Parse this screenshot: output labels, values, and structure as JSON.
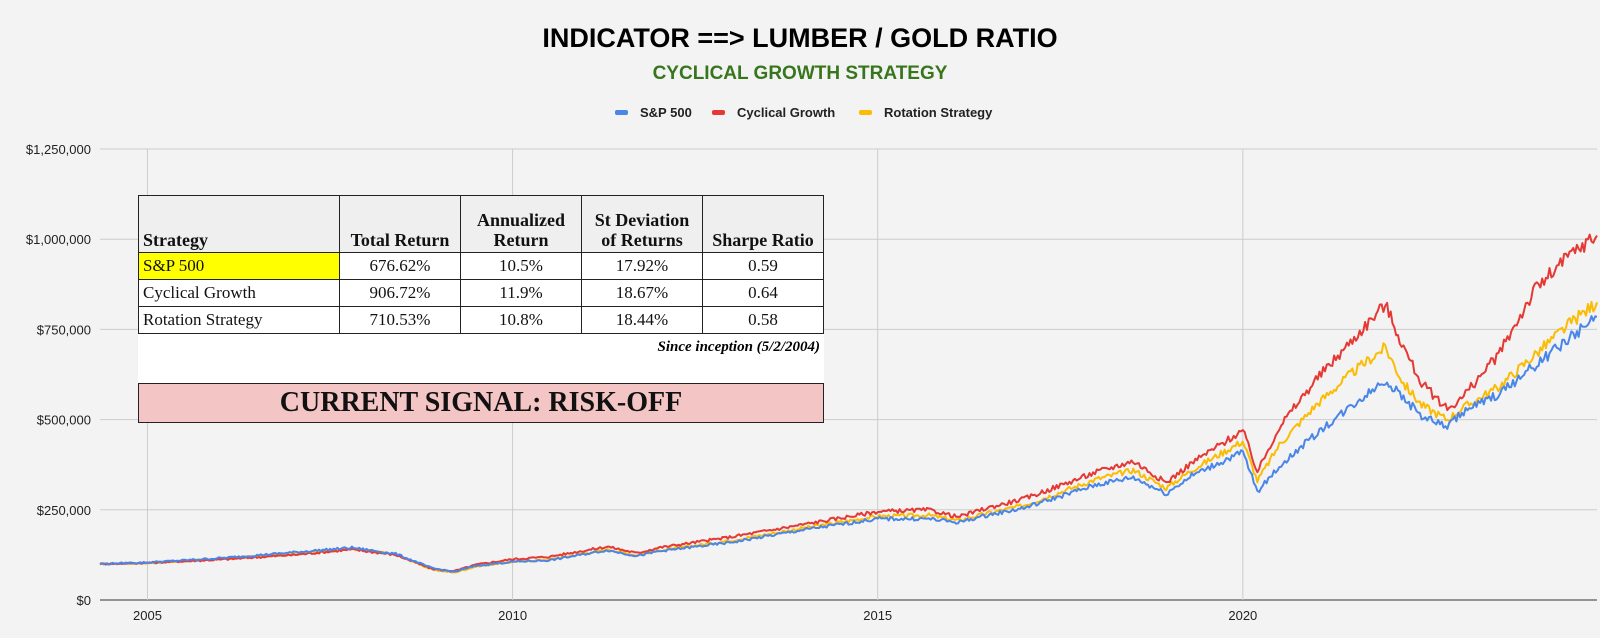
{
  "chart_data": {
    "type": "line",
    "title": "INDICATOR ==> LUMBER / GOLD RATIO",
    "subtitle": "CYCLICAL GROWTH STRATEGY",
    "xlabel": "",
    "ylabel": "",
    "x_ticks": [
      2005,
      2010,
      2015,
      2020
    ],
    "xlim": [
      2004.35,
      2024.85
    ],
    "ylim": [
      0,
      1250000
    ],
    "y_ticks": [
      0,
      250000,
      500000,
      750000,
      1000000,
      1250000
    ],
    "y_tick_labels": [
      "$0",
      "$250,000",
      "$500,000",
      "$750,000",
      "$1,000,000",
      "$1,250,000"
    ],
    "grid": true,
    "legend_position": "top-center",
    "series": [
      {
        "name": "S&P 500",
        "color": "#4a86e8",
        "points": [
          [
            2004.35,
            100000
          ],
          [
            2005.0,
            104000
          ],
          [
            2006.0,
            116000
          ],
          [
            2007.0,
            132000
          ],
          [
            2007.8,
            145000
          ],
          [
            2008.4,
            128000
          ],
          [
            2008.9,
            88000
          ],
          [
            2009.2,
            78000
          ],
          [
            2009.5,
            95000
          ],
          [
            2010.0,
            106000
          ],
          [
            2010.5,
            110000
          ],
          [
            2011.3,
            138000
          ],
          [
            2011.7,
            122000
          ],
          [
            2012.0,
            135000
          ],
          [
            2013.0,
            160000
          ],
          [
            2014.0,
            195000
          ],
          [
            2015.0,
            225000
          ],
          [
            2015.7,
            225000
          ],
          [
            2016.1,
            215000
          ],
          [
            2016.5,
            235000
          ],
          [
            2017.0,
            255000
          ],
          [
            2018.0,
            320000
          ],
          [
            2018.5,
            340000
          ],
          [
            2018.95,
            295000
          ],
          [
            2019.3,
            345000
          ],
          [
            2020.0,
            410000
          ],
          [
            2020.2,
            300000
          ],
          [
            2020.5,
            370000
          ],
          [
            2021.0,
            460000
          ],
          [
            2021.5,
            540000
          ],
          [
            2021.95,
            610000
          ],
          [
            2022.45,
            510000
          ],
          [
            2022.8,
            480000
          ],
          [
            2023.0,
            520000
          ],
          [
            2023.5,
            570000
          ],
          [
            2024.0,
            650000
          ],
          [
            2024.5,
            730000
          ],
          [
            2024.85,
            785000
          ]
        ]
      },
      {
        "name": "Cyclical Growth",
        "color": "#e53935",
        "points": [
          [
            2004.35,
            100000
          ],
          [
            2005.0,
            103000
          ],
          [
            2006.0,
            112000
          ],
          [
            2007.0,
            125000
          ],
          [
            2007.8,
            140000
          ],
          [
            2008.4,
            125000
          ],
          [
            2008.9,
            86000
          ],
          [
            2009.2,
            80000
          ],
          [
            2009.5,
            98000
          ],
          [
            2010.0,
            113000
          ],
          [
            2010.5,
            120000
          ],
          [
            2011.3,
            148000
          ],
          [
            2011.7,
            130000
          ],
          [
            2012.0,
            145000
          ],
          [
            2013.0,
            175000
          ],
          [
            2014.0,
            210000
          ],
          [
            2015.0,
            245000
          ],
          [
            2015.7,
            250000
          ],
          [
            2016.1,
            230000
          ],
          [
            2016.5,
            255000
          ],
          [
            2017.0,
            280000
          ],
          [
            2018.0,
            355000
          ],
          [
            2018.5,
            385000
          ],
          [
            2018.95,
            325000
          ],
          [
            2019.3,
            380000
          ],
          [
            2020.0,
            470000
          ],
          [
            2020.2,
            355000
          ],
          [
            2020.5,
            480000
          ],
          [
            2021.0,
            610000
          ],
          [
            2021.5,
            720000
          ],
          [
            2021.95,
            820000
          ],
          [
            2022.2,
            700000
          ],
          [
            2022.45,
            600000
          ],
          [
            2022.8,
            530000
          ],
          [
            2023.0,
            560000
          ],
          [
            2023.5,
            680000
          ],
          [
            2024.0,
            860000
          ],
          [
            2024.5,
            960000
          ],
          [
            2024.85,
            1010000
          ]
        ]
      },
      {
        "name": "Rotation Strategy",
        "color": "#fbbc04",
        "points": [
          [
            2004.35,
            100000
          ],
          [
            2005.0,
            102000
          ],
          [
            2006.0,
            114000
          ],
          [
            2007.0,
            128000
          ],
          [
            2007.8,
            142000
          ],
          [
            2008.4,
            127000
          ],
          [
            2008.9,
            84000
          ],
          [
            2009.2,
            76000
          ],
          [
            2009.5,
            93000
          ],
          [
            2010.0,
            106000
          ],
          [
            2010.5,
            112000
          ],
          [
            2011.3,
            140000
          ],
          [
            2011.7,
            124000
          ],
          [
            2012.0,
            137000
          ],
          [
            2013.0,
            165000
          ],
          [
            2014.0,
            200000
          ],
          [
            2015.0,
            232000
          ],
          [
            2015.7,
            235000
          ],
          [
            2016.1,
            220000
          ],
          [
            2016.5,
            240000
          ],
          [
            2017.0,
            262000
          ],
          [
            2018.0,
            335000
          ],
          [
            2018.5,
            360000
          ],
          [
            2018.95,
            310000
          ],
          [
            2019.3,
            360000
          ],
          [
            2020.0,
            440000
          ],
          [
            2020.2,
            330000
          ],
          [
            2020.5,
            430000
          ],
          [
            2021.0,
            540000
          ],
          [
            2021.5,
            630000
          ],
          [
            2021.95,
            700000
          ],
          [
            2022.2,
            600000
          ],
          [
            2022.45,
            540000
          ],
          [
            2022.8,
            500000
          ],
          [
            2023.0,
            530000
          ],
          [
            2023.5,
            590000
          ],
          [
            2024.0,
            680000
          ],
          [
            2024.5,
            770000
          ],
          [
            2024.85,
            825000
          ]
        ]
      }
    ],
    "table": {
      "headers": [
        "Strategy",
        "Total Return",
        "Annualized Return",
        "St Deviation of Returns",
        "Sharpe Ratio"
      ],
      "rows": [
        [
          "S&P 500",
          "676.62%",
          "10.5%",
          "17.92%",
          "0.59"
        ],
        [
          "Cyclical Growth",
          "906.72%",
          "11.9%",
          "18.67%",
          "0.64"
        ],
        [
          "Rotation Strategy",
          "710.53%",
          "10.8%",
          "18.44%",
          "0.58"
        ]
      ],
      "note": "Since inception (5/2/2004)"
    },
    "signal": "CURRENT SIGNAL: RISK-OFF"
  },
  "colors": {
    "background": "#f3f3f3",
    "title": "#000000",
    "subtitle": "#38761d",
    "grid": "#cccccc",
    "highlight": "#ffff00",
    "signal_bg": "#f3c6c5"
  }
}
